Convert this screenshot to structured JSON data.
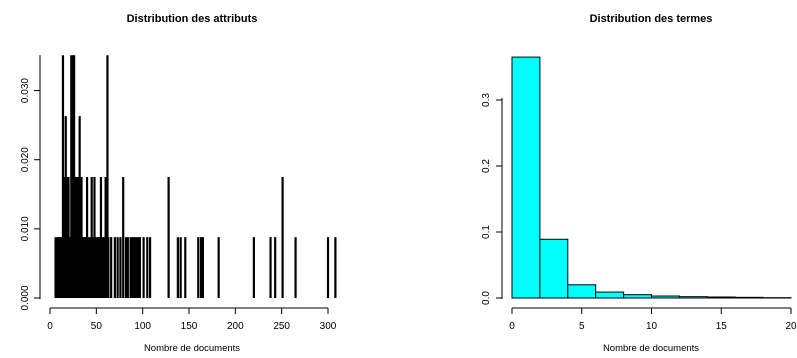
{
  "chart_data": [
    {
      "type": "bar",
      "subtype": "needle",
      "title": "Distribution des attributs",
      "xlabel": "Nombre de documents",
      "ylabel": "",
      "xlim": [
        0,
        310
      ],
      "ylim": [
        0,
        0.035
      ],
      "xticks": [
        "0",
        "50",
        "100",
        "150",
        "200",
        "250",
        "300"
      ],
      "yticks": [
        "0.000",
        "0.010",
        "0.020",
        "0.030"
      ],
      "bar_color": "#000000",
      "x": [
        6,
        8,
        10,
        11,
        12,
        14,
        15,
        16,
        17,
        18,
        19,
        20,
        21,
        22,
        23,
        24,
        25,
        26,
        27,
        28,
        29,
        30,
        31,
        32,
        33,
        34,
        35,
        36,
        37,
        38,
        39,
        40,
        42,
        44,
        45,
        47,
        48,
        50,
        52,
        53,
        55,
        57,
        58,
        60,
        62,
        63,
        66,
        70,
        73,
        76,
        79,
        82,
        84,
        87,
        89,
        91,
        93,
        95,
        97,
        101,
        105,
        108,
        128,
        138,
        141,
        146,
        160,
        163,
        165,
        182,
        220,
        238,
        243,
        251,
        265,
        300,
        308
      ],
      "values": [
        0.0088,
        0.0088,
        0.0088,
        0.0088,
        0.0088,
        0.0351,
        0.0175,
        0.0088,
        0.0263,
        0.0175,
        0.0088,
        0.0175,
        0.0088,
        0.0088,
        0.0351,
        0.0175,
        0.0351,
        0.0351,
        0.0088,
        0.0175,
        0.0088,
        0.0175,
        0.0088,
        0.0263,
        0.0088,
        0.0175,
        0.0088,
        0.0088,
        0.0088,
        0.0088,
        0.0088,
        0.0175,
        0.0088,
        0.0088,
        0.0175,
        0.0088,
        0.0175,
        0.0088,
        0.0088,
        0.0088,
        0.0175,
        0.0088,
        0.0088,
        0.0175,
        0.0351,
        0.0088,
        0.0088,
        0.0088,
        0.0088,
        0.0088,
        0.0175,
        0.0088,
        0.0088,
        0.0088,
        0.0088,
        0.0088,
        0.0088,
        0.0088,
        0.0088,
        0.0088,
        0.0088,
        0.0088,
        0.0175,
        0.0088,
        0.0088,
        0.0088,
        0.0088,
        0.0088,
        0.0088,
        0.0088,
        0.0088,
        0.0088,
        0.0088,
        0.0175,
        0.0088,
        0.0088,
        0.0088
      ]
    },
    {
      "type": "histogram",
      "title": "Distribution des termes",
      "xlabel": "Nombre de documents",
      "ylabel": "",
      "xlim": [
        0,
        20
      ],
      "ylim": [
        0,
        0.36
      ],
      "xticks": [
        "0",
        "5",
        "10",
        "15",
        "20"
      ],
      "yticks": [
        "0.0",
        "0.1",
        "0.2",
        "0.3"
      ],
      "bar_color": "#00ffff",
      "bins": [
        [
          0,
          2
        ],
        [
          2,
          4
        ],
        [
          4,
          6
        ],
        [
          6,
          8
        ],
        [
          8,
          10
        ],
        [
          10,
          12
        ],
        [
          12,
          14
        ],
        [
          14,
          16
        ],
        [
          16,
          18
        ],
        [
          18,
          20
        ]
      ],
      "values": [
        0.365,
        0.089,
        0.02,
        0.009,
        0.005,
        0.003,
        0.002,
        0.0015,
        0.001,
        0.0005
      ]
    }
  ]
}
